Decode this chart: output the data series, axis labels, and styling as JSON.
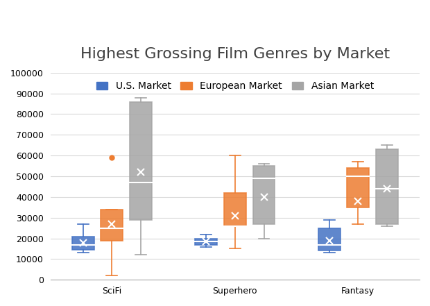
{
  "title": "Highest Grossing Film Genres by Market",
  "categories": [
    "SciFi",
    "Superhero",
    "Fantasy"
  ],
  "series": [
    {
      "name": "U.S. Market",
      "color": "#4472C4",
      "boxes": [
        {
          "whislo": 13000,
          "q1": 14500,
          "med": 17000,
          "q3": 21000,
          "whishi": 27000,
          "mean": 18000,
          "fliers": []
        },
        {
          "whislo": 16000,
          "q1": 17000,
          "med": 18500,
          "q3": 20000,
          "whishi": 22000,
          "mean": 18500,
          "fliers": []
        },
        {
          "whislo": 13000,
          "q1": 14000,
          "med": 17000,
          "q3": 25000,
          "whishi": 29000,
          "mean": 19000,
          "fliers": []
        }
      ]
    },
    {
      "name": "European Market",
      "color": "#ED7D31",
      "boxes": [
        {
          "whislo": 2000,
          "q1": 19000,
          "med": 25000,
          "q3": 34000,
          "whishi": 34000,
          "mean": 27000,
          "fliers": [
            59000
          ]
        },
        {
          "whislo": 15000,
          "q1": 26000,
          "med": 26000,
          "q3": 42000,
          "whishi": 60000,
          "mean": 31000,
          "fliers": []
        },
        {
          "whislo": 27000,
          "q1": 35000,
          "med": 50000,
          "q3": 54000,
          "whishi": 57000,
          "mean": 38000,
          "fliers": []
        }
      ]
    },
    {
      "name": "Asian Market",
      "color": "#A5A5A5",
      "boxes": [
        {
          "whislo": 12000,
          "q1": 29000,
          "med": 47000,
          "q3": 86000,
          "whishi": 88000,
          "mean": 52000,
          "fliers": []
        },
        {
          "whislo": 20000,
          "q1": 27000,
          "med": 49000,
          "q3": 55000,
          "whishi": 56000,
          "mean": 40000,
          "fliers": []
        },
        {
          "whislo": 26000,
          "q1": 27000,
          "med": 44000,
          "q3": 63000,
          "whishi": 65000,
          "mean": 44000,
          "fliers": []
        }
      ]
    }
  ],
  "ylim": [
    0,
    100000
  ],
  "yticks": [
    0,
    10000,
    20000,
    30000,
    40000,
    50000,
    60000,
    70000,
    80000,
    90000,
    100000
  ],
  "background_color": "#FFFFFF",
  "grid_color": "#D9D9D9",
  "title_fontsize": 16,
  "legend_fontsize": 10,
  "tick_fontsize": 9
}
